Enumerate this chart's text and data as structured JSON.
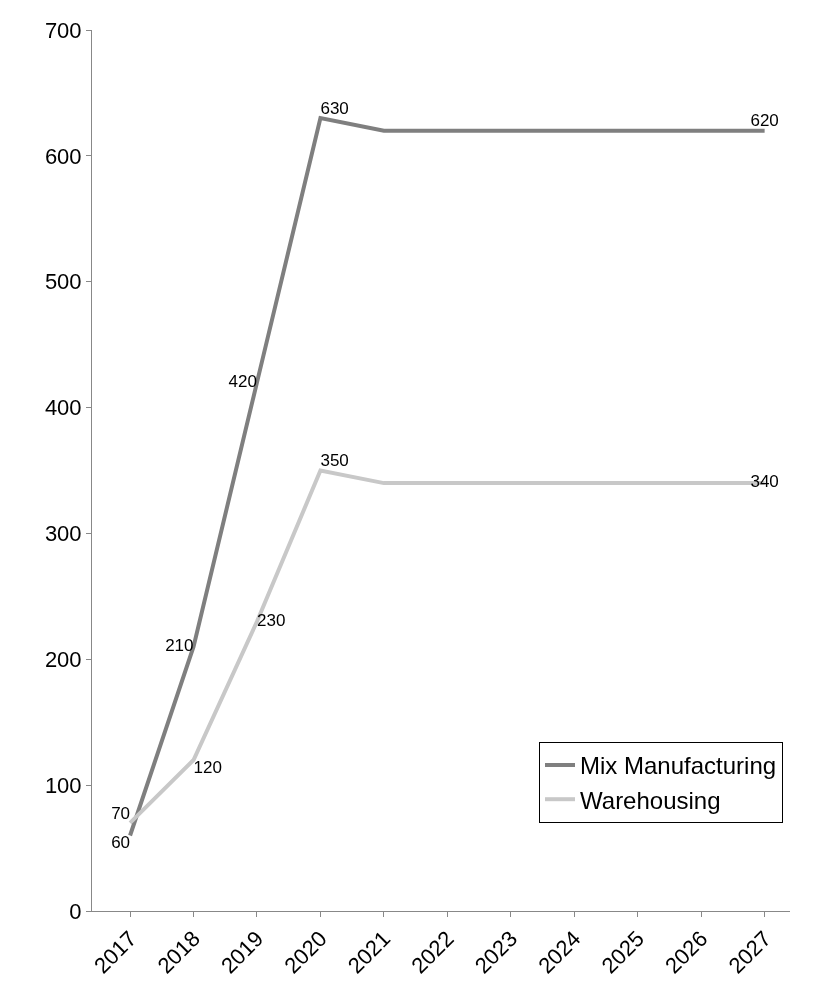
{
  "chart_data": {
    "type": "line",
    "categories": [
      "2017",
      "2018",
      "2019",
      "2020",
      "2021",
      "2022",
      "2023",
      "2024",
      "2025",
      "2026",
      "2027"
    ],
    "series": [
      {
        "name": "Mix Manufacturing",
        "color": "#7f7f7f",
        "values": [
          60,
          210,
          420,
          630,
          620,
          620,
          620,
          620,
          620,
          620,
          620
        ],
        "value_labels": [
          "60",
          "210",
          "420",
          "630",
          null,
          null,
          null,
          null,
          null,
          null,
          "620"
        ]
      },
      {
        "name": "Warehousing",
        "color": "#c8c8c8",
        "values": [
          70,
          120,
          230,
          350,
          340,
          340,
          340,
          340,
          340,
          340,
          340
        ],
        "value_labels": [
          "70",
          "120",
          "230",
          "350",
          null,
          null,
          null,
          null,
          null,
          null,
          "340"
        ]
      }
    ],
    "ylim": [
      0,
      700
    ],
    "yticks": [
      0,
      100,
      200,
      300,
      400,
      500,
      600,
      700
    ],
    "grid": false,
    "legend": "bottom right",
    "marker": "none",
    "line_style": "solid"
  }
}
